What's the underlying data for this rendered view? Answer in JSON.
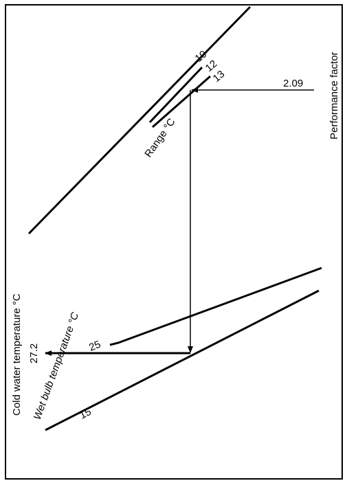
{
  "labels": {
    "performance_factor": "Performance factor",
    "range": "Range °C",
    "cold_water": "Cold water temperature °C",
    "wet_bulb": "Wet bulb temperature °C"
  },
  "values": {
    "performance_factor_value": "2.09",
    "range_10": "10",
    "range_12": "12",
    "range_13": "13",
    "wet_bulb_25": "25",
    "wet_bulb_15": "15",
    "cold_water_result": "27.2"
  },
  "colors": {
    "ink": "#000000",
    "background": "#ffffff"
  }
}
